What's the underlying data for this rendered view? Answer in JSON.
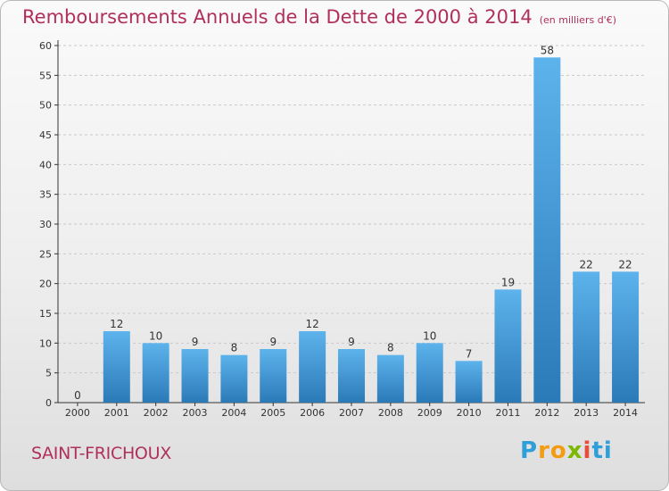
{
  "title": "Remboursements Annuels de la Dette de 2000 à 2014",
  "unit_note": "(en milliers d'€)",
  "commune": "SAINT-FRICHOUX",
  "logo": {
    "text": "Proxiti",
    "colors": [
      "#2e9fd8",
      "#f39c12",
      "#7cb800",
      "#e74c3c",
      "#2e9fd8"
    ]
  },
  "colors": {
    "title": "#b0305a",
    "bar_top": "#5db3ec",
    "bar_bottom": "#2b7ab8",
    "grid": "#c9c9c9"
  },
  "chart_data": {
    "type": "bar",
    "title": "Remboursements Annuels de la Dette de 2000 à 2014",
    "xlabel": "",
    "ylabel": "",
    "ylim": [
      0,
      60
    ],
    "yticks": [
      0,
      5,
      10,
      15,
      20,
      25,
      30,
      35,
      40,
      45,
      50,
      55,
      60
    ],
    "grid": true,
    "categories": [
      "2000",
      "2001",
      "2002",
      "2003",
      "2004",
      "2005",
      "2006",
      "2007",
      "2008",
      "2009",
      "2010",
      "2011",
      "2012",
      "2013",
      "2014"
    ],
    "values": [
      0,
      12,
      10,
      9,
      8,
      9,
      12,
      9,
      8,
      10,
      7,
      19,
      58,
      22,
      22
    ]
  }
}
